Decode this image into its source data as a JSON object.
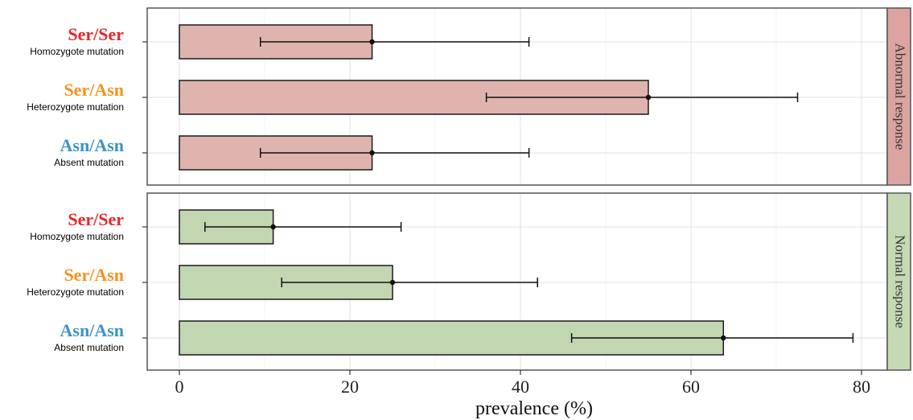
{
  "chart_data": {
    "type": "bar",
    "orientation": "horizontal",
    "xlabel": "prevalence (%)",
    "xlim": [
      -4.5,
      83
    ],
    "x_ticks": [
      0,
      20,
      40,
      60,
      80
    ],
    "x_tick_labels": [
      "0",
      "20",
      "40",
      "60",
      "80"
    ],
    "grid": true,
    "categories": [
      {
        "genotype": "Ser/Ser",
        "description": "Homozygote mutation",
        "color": "#e8262b"
      },
      {
        "genotype": "Ser/Asn",
        "description": "Heterozygote mutation",
        "color": "#f5921e"
      },
      {
        "genotype": "Asn/Asn",
        "description": "Absent mutation",
        "color": "#3d93c9"
      }
    ],
    "facets": [
      {
        "label": "Abnormal response",
        "bar_color": "#e0b4ae",
        "strip_color": "#dba4a0",
        "values": [
          22.6,
          55.0,
          22.6
        ],
        "ci_low": [
          9.5,
          36.0,
          9.5
        ],
        "ci_high": [
          41.0,
          72.5,
          41.0
        ]
      },
      {
        "label": "Normal response",
        "bar_color": "#c2d6b2",
        "strip_color": "#c5d9b5",
        "values": [
          11.0,
          25.0,
          63.8
        ],
        "ci_low": [
          3.0,
          12.0,
          46.0
        ],
        "ci_high": [
          26.0,
          42.0,
          79.0
        ]
      }
    ]
  }
}
